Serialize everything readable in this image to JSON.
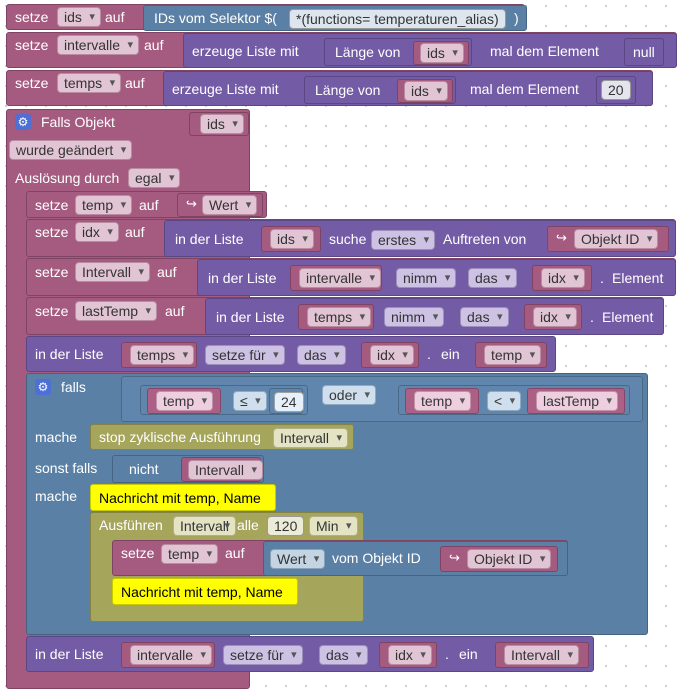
{
  "colors": {
    "variables": "#a55b80",
    "lists": "#745ba5",
    "control": "#5b80a5",
    "olive": "#a5a55b",
    "comment": "#ffff00"
  },
  "icons": {
    "gear": "gear-icon",
    "return": "return-arrow-icon"
  },
  "blocks": {
    "set_ids": {
      "kw_set": "setze",
      "var": "ids",
      "kw_to": "auf",
      "selector_label": "IDs vom Selektor $(",
      "selector_value": "*(functions= temperaturen_alias)",
      "selector_close": ")"
    },
    "set_intervalle": {
      "kw_set": "setze",
      "var": "intervalle",
      "kw_to": "auf",
      "create": "erzeuge Liste mit",
      "length_of": "Länge von",
      "length_var": "ids",
      "with_element": "mal dem Element",
      "element_value": "null"
    },
    "set_temps": {
      "kw_set": "setze",
      "var": "temps",
      "kw_to": "auf",
      "create": "erzeuge Liste mit",
      "length_of": "Länge von",
      "length_var": "ids",
      "with_element": "mal dem Element",
      "element_value": "20"
    },
    "trigger": {
      "if_object": "Falls Objekt",
      "object_var": "ids",
      "changed": "wurde geändert",
      "trigger_by": "Auslösung durch",
      "trigger_value": "egal"
    },
    "set_temp": {
      "kw_set": "setze",
      "var": "temp",
      "kw_to": "auf",
      "value": "Wert"
    },
    "set_idx": {
      "kw_set": "setze",
      "var": "idx",
      "kw_to": "auf",
      "in_list": "in der Liste",
      "list_var": "ids",
      "find": "suche",
      "find_mode": "erstes",
      "occurrence": "Auftreten von",
      "object_id": "Objekt ID"
    },
    "set_intervall": {
      "kw_set": "setze",
      "var": "Intervall",
      "kw_to": "auf",
      "in_list": "in der Liste",
      "list_var": "intervalle",
      "mode": "nimm",
      "where": "das",
      "index_var": "idx",
      "dot": ".",
      "element": "Element"
    },
    "set_lasttemp": {
      "kw_set": "setze",
      "var": "lastTemp",
      "kw_to": "auf",
      "in_list": "in der Liste",
      "list_var": "temps",
      "mode": "nimm",
      "where": "das",
      "index_var": "idx",
      "dot": ".",
      "element": "Element"
    },
    "list_set_temps": {
      "in_list": "in der Liste",
      "list_var": "temps",
      "mode": "setze für",
      "where": "das",
      "index_var": "idx",
      "dot": ".",
      "insert": "ein",
      "value_var": "temp"
    },
    "if_block": {
      "if": "falls",
      "left_var": "temp",
      "op1": "≤",
      "num": "24",
      "or": "oder",
      "right_var": "temp",
      "op2": "<",
      "right_cmp": "lastTemp",
      "do1": "mache",
      "stop": "stop zyklische Ausführung",
      "stop_var": "Intervall",
      "elseif": "sonst falls",
      "not": "nicht",
      "not_var": "Intervall",
      "do2": "mache",
      "comment1": "Nachricht mit temp, Name",
      "run": "Ausführen",
      "run_var": "Intervall",
      "every": "alle",
      "every_value": "120",
      "unit": "Min",
      "inner_set": "setze",
      "inner_var": "temp",
      "inner_to": "auf",
      "inner_value": "Wert",
      "inner_from": "vom Objekt ID",
      "inner_obj": "Objekt ID",
      "comment2": "Nachricht mit temp, Name"
    },
    "list_set_intervalle": {
      "in_list": "in der Liste",
      "list_var": "intervalle",
      "mode": "setze für",
      "where": "das",
      "index_var": "idx",
      "dot": ".",
      "insert": "ein",
      "value_var": "Intervall"
    }
  }
}
